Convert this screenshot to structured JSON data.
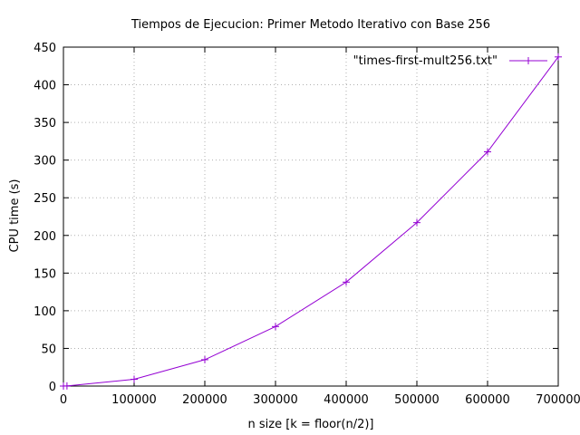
{
  "chart_data": {
    "type": "line",
    "title": "Tiempos de Ejecucion: Primer Metodo Iterativo con Base 256",
    "xlabel": "n size [k = floor(n/2)]",
    "ylabel": "CPU time (s)",
    "xlim": [
      0,
      700000
    ],
    "ylim": [
      0,
      450
    ],
    "x_ticks": [
      0,
      100000,
      200000,
      300000,
      400000,
      500000,
      600000,
      700000
    ],
    "y_ticks": [
      0,
      50,
      100,
      150,
      200,
      250,
      300,
      350,
      400,
      450
    ],
    "grid": true,
    "legend_position": "top-right",
    "series": [
      {
        "name": "\"times-first-mult256.txt\"",
        "color": "#9400d3",
        "marker": "plus",
        "x": [
          0,
          5000,
          100000,
          200000,
          300000,
          400000,
          500000,
          600000,
          700000
        ],
        "y": [
          0,
          0.2,
          9,
          35,
          79,
          138,
          217,
          311,
          437
        ]
      }
    ]
  }
}
